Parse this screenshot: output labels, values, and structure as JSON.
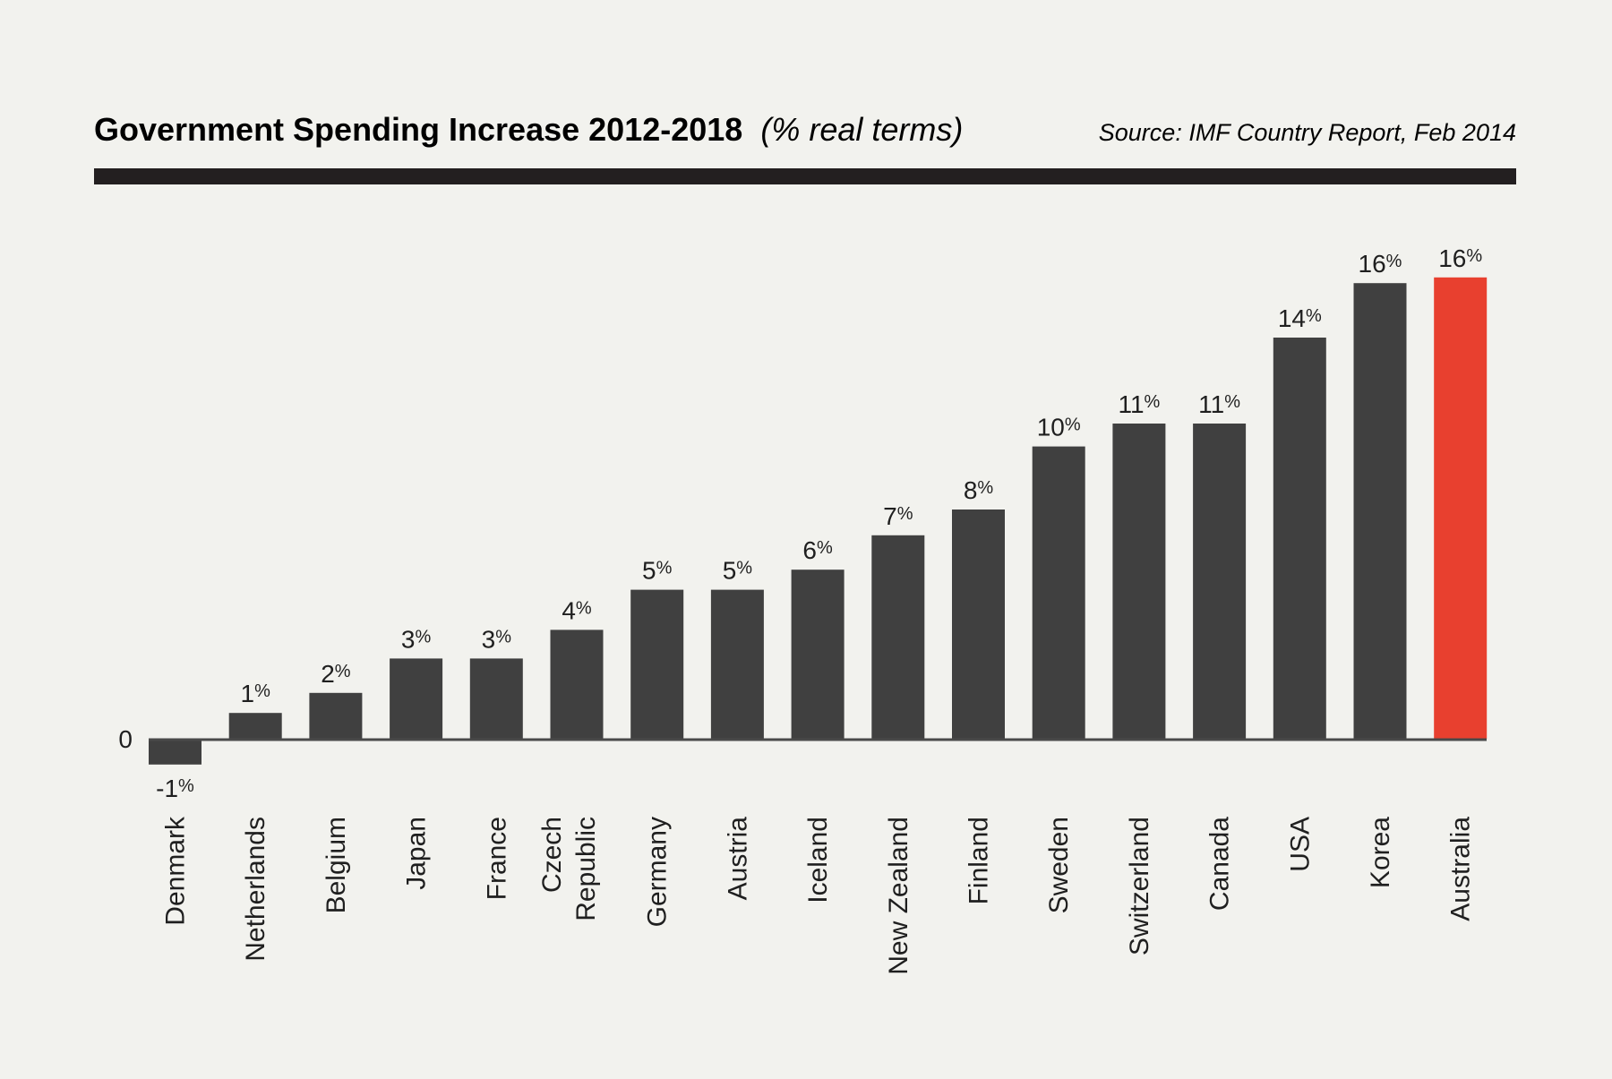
{
  "header": {
    "title": "Government Spending Increase 2012-2018",
    "title_unit": "(% real terms)",
    "source": "Source: IMF Country Report, Feb 2014"
  },
  "chart_data": {
    "type": "bar",
    "title": "Government Spending Increase 2012-2018 (% real terms)",
    "source": "Source: IMF Country Report, Feb 2014",
    "xlabel": "",
    "ylabel": "",
    "zero_label": "0",
    "unit_suffix": "%",
    "categories": [
      "Denmark",
      "Netherlands",
      "Belgium",
      "Japan",
      "France",
      "Czech Republic",
      "Germany",
      "Austria",
      "Iceland",
      "New Zealand",
      "Finland",
      "Sweden",
      "Switzerland",
      "Canada",
      "USA",
      "Korea",
      "Australia"
    ],
    "category_label_lines": [
      [
        "Denmark"
      ],
      [
        "Netherlands"
      ],
      [
        "Belgium"
      ],
      [
        "Japan"
      ],
      [
        "France"
      ],
      [
        "Czech",
        "Republic"
      ],
      [
        "Germany"
      ],
      [
        "Austria"
      ],
      [
        "Iceland"
      ],
      [
        "New Zealand"
      ],
      [
        "Finland"
      ],
      [
        "Sweden"
      ],
      [
        "Switzerland"
      ],
      [
        "Canada"
      ],
      [
        "USA"
      ],
      [
        "Korea"
      ],
      [
        "Australia"
      ]
    ],
    "values": [
      -0.9,
      0.9,
      1.6,
      2.8,
      2.8,
      3.8,
      5.2,
      5.2,
      5.9,
      7.1,
      8.0,
      10.2,
      11.0,
      11.0,
      14.0,
      15.9,
      16.1
    ],
    "data_labels": [
      "-1",
      "1",
      "2",
      "3",
      "3",
      "4",
      "5",
      "5",
      "6",
      "7",
      "8",
      "10",
      "11",
      "11",
      "14",
      "16",
      "16"
    ],
    "ylim": [
      -1,
      16.5
    ],
    "grid": false,
    "legend": "none",
    "colors": {
      "default": "#404040",
      "highlight": "#e8402f",
      "highlight_category": "Australia",
      "rule": "#231f20",
      "axis": "#4a4a4a",
      "background": "#f2f2ee"
    }
  }
}
